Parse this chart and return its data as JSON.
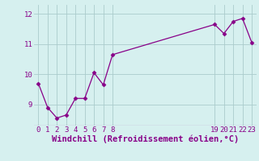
{
  "x": [
    0,
    1,
    2,
    3,
    4,
    5,
    6,
    7,
    8,
    19,
    20,
    21,
    22,
    23
  ],
  "y": [
    9.7,
    8.9,
    8.55,
    8.65,
    9.2,
    9.2,
    10.05,
    9.65,
    10.65,
    11.65,
    11.35,
    11.75,
    11.85,
    11.05
  ],
  "line_color": "#880088",
  "marker": "D",
  "marker_size": 2.5,
  "bg_color": "#d6f0ef",
  "grid_color": "#aacccc",
  "xlabel": "Windchill (Refroidissement éolien,°C)",
  "xlabel_color": "#880088",
  "xlabel_fontsize": 7.5,
  "ytick_labels": [
    "9",
    "10",
    "11",
    "12"
  ],
  "ytick_values": [
    9,
    10,
    11,
    12
  ],
  "xtick_values": [
    0,
    1,
    2,
    3,
    4,
    5,
    6,
    7,
    8,
    19,
    20,
    21,
    22,
    23
  ],
  "xlim": [
    -0.5,
    23.5
  ],
  "ylim": [
    8.3,
    12.3
  ],
  "tick_color": "#880088",
  "tick_fontsize": 6.5,
  "linewidth": 0.9
}
